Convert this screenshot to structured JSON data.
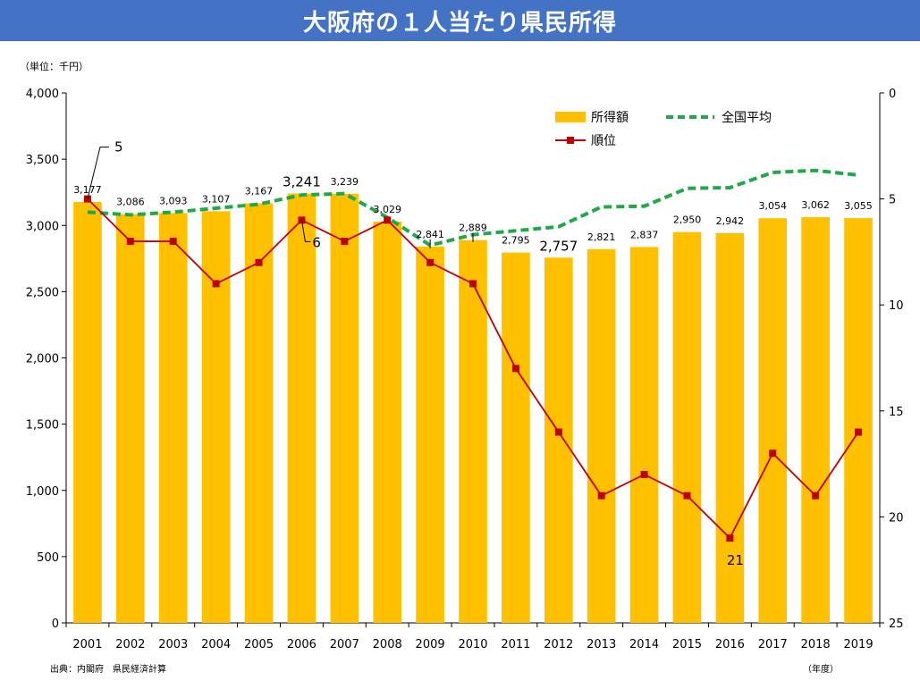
{
  "title": "大阪府の１人当たり県民所得",
  "unit_label": "（単位：千円）",
  "source_label": "出典：内閣府　県民経済計算",
  "year_unit_label": "（年度）",
  "colors": {
    "title_bg": "#4472c4",
    "bar": "#ffc000",
    "national": "#22a84a",
    "rank": "#c00000"
  },
  "chart_data": {
    "type": "bar+line",
    "categories": [
      "2001",
      "2002",
      "2003",
      "2004",
      "2005",
      "2006",
      "2007",
      "2008",
      "2009",
      "2010",
      "2011",
      "2012",
      "2013",
      "2014",
      "2015",
      "2016",
      "2017",
      "2018",
      "2019"
    ],
    "y_left": {
      "min": 0,
      "max": 4000,
      "step": 500,
      "ticks": [
        "0",
        "500",
        "1,000",
        "1,500",
        "2,000",
        "2,500",
        "3,000",
        "3,500",
        "4,000"
      ]
    },
    "y_right": {
      "min": 0,
      "max": 25,
      "step": 5,
      "inverted": true,
      "ticks": [
        "0",
        "5",
        "10",
        "15",
        "20",
        "25"
      ]
    },
    "series": [
      {
        "name": "所得額",
        "type": "bar",
        "axis": "left",
        "values": [
          3177,
          3086,
          3093,
          3107,
          3167,
          3241,
          3239,
          3029,
          2841,
          2889,
          2795,
          2757,
          2821,
          2837,
          2950,
          2942,
          3054,
          3062,
          3055
        ],
        "labels": [
          "3,177",
          "3,086",
          "3,093",
          "3,107",
          "3,167",
          "3,241",
          "3,239",
          "3,029",
          "2,841",
          "2,889",
          "2,795",
          "2,757",
          "2,821",
          "2,837",
          "2,950",
          "2,942",
          "3,054",
          "3,062",
          "3,055"
        ]
      },
      {
        "name": "全国平均",
        "type": "line-dashed",
        "axis": "left",
        "values": [
          3100,
          3080,
          3100,
          3130,
          3160,
          3230,
          3240,
          3060,
          2850,
          2930,
          2960,
          2990,
          3140,
          3145,
          3280,
          3285,
          3400,
          3415,
          3380
        ]
      },
      {
        "name": "順位",
        "type": "line-markers",
        "axis": "right",
        "values": [
          5,
          7,
          7,
          9,
          8,
          6,
          7,
          6,
          8,
          9,
          13,
          16,
          19,
          18,
          19,
          21,
          17,
          19,
          16
        ]
      }
    ],
    "annotations": [
      {
        "text": "5",
        "category": "2001"
      },
      {
        "text": "6",
        "category": "2006"
      },
      {
        "text": "21",
        "category": "2016"
      }
    ],
    "legend": [
      "所得額",
      "全国平均",
      "順位"
    ]
  }
}
